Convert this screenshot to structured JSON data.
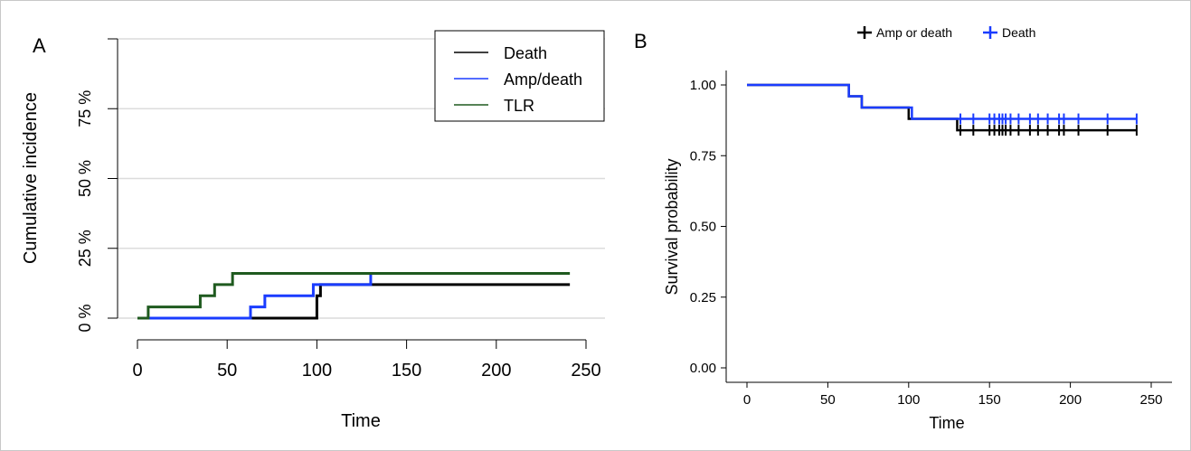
{
  "chart_data": [
    {
      "panel_label": "A",
      "type": "line",
      "step": true,
      "xlabel": "Time",
      "ylabel": "Cumulative incidence",
      "xlim": [
        0,
        250
      ],
      "ylim": [
        0,
        100
      ],
      "x_ticks": [
        0,
        50,
        100,
        150,
        200,
        250
      ],
      "y_ticks": [
        0,
        25,
        50,
        75,
        100
      ],
      "y_tick_labels": [
        "0 %",
        "25 %",
        "50 %",
        "75 %",
        ""
      ],
      "grid": true,
      "legend": "top-right",
      "legend_boxed": true,
      "series": [
        {
          "name": "Death",
          "color": "#000000",
          "points": [
            [
              63,
              0
            ],
            [
              100,
              8
            ],
            [
              102,
              12
            ],
            [
              241,
              12
            ]
          ]
        },
        {
          "name": "Amp/death",
          "color": "#1a3cff",
          "points": [
            [
              0,
              0
            ],
            [
              63,
              4
            ],
            [
              71,
              8
            ],
            [
              98,
              12
            ],
            [
              130,
              16
            ],
            [
              130,
              12
            ]
          ]
        },
        {
          "name": "TLR",
          "color": "#1f5a1f",
          "points": [
            [
              0,
              0
            ],
            [
              6,
              4
            ],
            [
              35,
              8
            ],
            [
              43,
              12
            ],
            [
              53,
              16
            ],
            [
              241,
              16
            ]
          ]
        }
      ]
    },
    {
      "panel_label": "B",
      "type": "line",
      "step": true,
      "xlabel": "Time",
      "ylabel": "Survival probability",
      "xlim": [
        0,
        250
      ],
      "ylim": [
        0,
        1
      ],
      "x_ticks": [
        0,
        50,
        100,
        150,
        200,
        250
      ],
      "y_ticks": [
        0,
        0.25,
        0.5,
        0.75,
        1
      ],
      "y_tick_labels": [
        "0.00",
        "0.25",
        "0.50",
        "0.75",
        "1.00"
      ],
      "grid": false,
      "legend": "top",
      "censor_marks": true,
      "series": [
        {
          "name": "Amp or death",
          "color": "#000000",
          "points": [
            [
              0,
              1
            ],
            [
              63,
              0.96
            ],
            [
              71,
              0.92
            ],
            [
              100,
              0.88
            ],
            [
              130,
              0.84
            ],
            [
              241,
              0.84
            ]
          ],
          "censored": [
            132,
            140,
            150,
            153,
            156,
            158,
            160,
            163,
            168,
            175,
            180,
            186,
            193,
            196,
            205,
            223,
            241
          ]
        },
        {
          "name": "Death",
          "color": "#1a3cff",
          "points": [
            [
              0,
              1
            ],
            [
              63,
              0.96
            ],
            [
              71,
              0.92
            ],
            [
              102,
              0.88
            ],
            [
              241,
              0.88
            ]
          ],
          "censored": [
            132,
            140,
            150,
            153,
            156,
            158,
            160,
            163,
            168,
            175,
            180,
            186,
            193,
            196,
            205,
            223,
            241
          ]
        }
      ]
    }
  ]
}
